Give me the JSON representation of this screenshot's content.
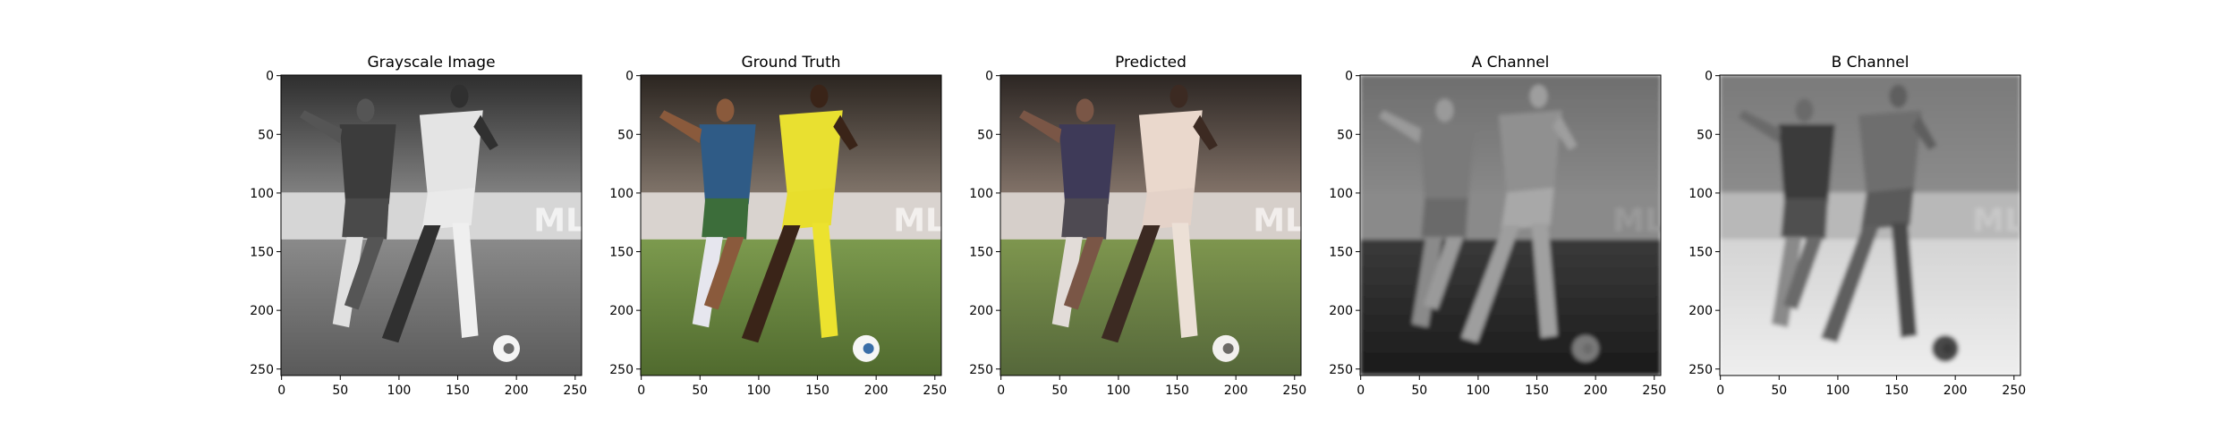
{
  "figure": {
    "panels": [
      {
        "title": "Grayscale Image",
        "kind": "grayscale"
      },
      {
        "title": "Ground Truth",
        "kind": "color"
      },
      {
        "title": "Predicted",
        "kind": "predicted"
      },
      {
        "title": "A Channel",
        "kind": "a_channel"
      },
      {
        "title": "B Channel",
        "kind": "b_channel"
      }
    ]
  },
  "chart_data": [
    {
      "type": "image",
      "title": "Grayscale Image",
      "xlabel": "",
      "ylabel": "",
      "xlim": [
        0,
        255
      ],
      "ylim": [
        255,
        0
      ],
      "xticks": [
        0,
        50,
        100,
        150,
        200,
        250
      ],
      "yticks": [
        0,
        50,
        100,
        150,
        200,
        250
      ],
      "grid": false
    },
    {
      "type": "image",
      "title": "Ground Truth",
      "xlabel": "",
      "ylabel": "",
      "xlim": [
        0,
        255
      ],
      "ylim": [
        255,
        0
      ],
      "xticks": [
        0,
        50,
        100,
        150,
        200,
        250
      ],
      "yticks": [
        0,
        50,
        100,
        150,
        200,
        250
      ],
      "grid": false
    },
    {
      "type": "image",
      "title": "Predicted",
      "xlabel": "",
      "ylabel": "",
      "xlim": [
        0,
        255
      ],
      "ylim": [
        255,
        0
      ],
      "xticks": [
        0,
        50,
        100,
        150,
        200,
        250
      ],
      "yticks": [
        0,
        50,
        100,
        150,
        200,
        250
      ],
      "grid": false
    },
    {
      "type": "image",
      "title": "A Channel",
      "xlabel": "",
      "ylabel": "",
      "xlim": [
        0,
        255
      ],
      "ylim": [
        255,
        0
      ],
      "xticks": [
        0,
        50,
        100,
        150,
        200,
        250
      ],
      "yticks": [
        0,
        50,
        100,
        150,
        200,
        250
      ],
      "grid": false
    },
    {
      "type": "image",
      "title": "B Channel",
      "xlabel": "",
      "ylabel": "",
      "xlim": [
        0,
        255
      ],
      "ylim": [
        255,
        0
      ],
      "xticks": [
        0,
        50,
        100,
        150,
        200,
        250
      ],
      "yticks": [
        0,
        50,
        100,
        150,
        200,
        250
      ],
      "grid": false
    }
  ]
}
